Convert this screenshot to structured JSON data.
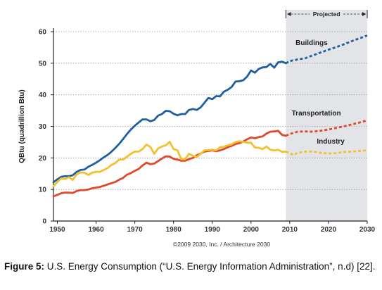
{
  "chart_data": {
    "type": "line",
    "ylabel": "QBtu (quadrillion Btu)",
    "ylim": [
      0,
      60
    ],
    "xlim": [
      1949,
      2030
    ],
    "yticks": [
      0,
      10,
      20,
      30,
      40,
      50,
      60
    ],
    "xticks": [
      1950,
      1960,
      1970,
      1980,
      1990,
      2000,
      2010,
      2020,
      2030
    ],
    "grid": true,
    "projection_start": 2009,
    "projection_label": "Projected",
    "credit": "©2009 2030, Inc. / Architecture 2030",
    "series": [
      {
        "name": "Buildings",
        "color": "#1f5fa0",
        "historical": [
          [
            1949,
            12.3
          ],
          [
            1950,
            13.2
          ],
          [
            1951,
            14
          ],
          [
            1952,
            14.2
          ],
          [
            1953,
            14.2
          ],
          [
            1954,
            14.5
          ],
          [
            1955,
            15.6
          ],
          [
            1956,
            16.2
          ],
          [
            1957,
            16.3
          ],
          [
            1958,
            17.2
          ],
          [
            1959,
            17.8
          ],
          [
            1960,
            18.5
          ],
          [
            1961,
            19.3
          ],
          [
            1962,
            20.2
          ],
          [
            1963,
            21
          ],
          [
            1964,
            22
          ],
          [
            1965,
            23.2
          ],
          [
            1966,
            24.5
          ],
          [
            1967,
            26
          ],
          [
            1968,
            27.6
          ],
          [
            1969,
            29
          ],
          [
            1970,
            30.2
          ],
          [
            1971,
            31.2
          ],
          [
            1972,
            32.2
          ],
          [
            1973,
            32.2
          ],
          [
            1974,
            31.6
          ],
          [
            1975,
            32
          ],
          [
            1976,
            33.4
          ],
          [
            1977,
            33.9
          ],
          [
            1978,
            34.9
          ],
          [
            1979,
            34.8
          ],
          [
            1980,
            34
          ],
          [
            1981,
            33.5
          ],
          [
            1982,
            33.9
          ],
          [
            1983,
            33.9
          ],
          [
            1984,
            35.2
          ],
          [
            1985,
            35.5
          ],
          [
            1986,
            35.2
          ],
          [
            1987,
            36
          ],
          [
            1988,
            37.5
          ],
          [
            1989,
            39
          ],
          [
            1990,
            38.6
          ],
          [
            1991,
            39.6
          ],
          [
            1992,
            39.5
          ],
          [
            1993,
            41
          ],
          [
            1994,
            41.6
          ],
          [
            1995,
            42.5
          ],
          [
            1996,
            44.2
          ],
          [
            1997,
            44.3
          ],
          [
            1998,
            44.6
          ],
          [
            1999,
            45.8
          ],
          [
            2000,
            47.7
          ],
          [
            2001,
            47
          ],
          [
            2002,
            48.2
          ],
          [
            2003,
            48.7
          ],
          [
            2004,
            48.8
          ],
          [
            2005,
            49.8
          ],
          [
            2006,
            48.6
          ],
          [
            2007,
            50.3
          ],
          [
            2008,
            50.5
          ],
          [
            2009,
            50
          ]
        ],
        "projected": [
          [
            2009,
            50
          ],
          [
            2010,
            50.7
          ],
          [
            2012,
            51.2
          ],
          [
            2014,
            51.6
          ],
          [
            2016,
            52.5
          ],
          [
            2018,
            53.4
          ],
          [
            2020,
            54.3
          ],
          [
            2022,
            55.1
          ],
          [
            2024,
            56
          ],
          [
            2026,
            57
          ],
          [
            2028,
            57.9
          ],
          [
            2030,
            58.8
          ]
        ]
      },
      {
        "name": "Transportation",
        "color": "#e2472b",
        "historical": [
          [
            1949,
            7.8
          ],
          [
            1950,
            8.3
          ],
          [
            1951,
            8.8
          ],
          [
            1952,
            9
          ],
          [
            1953,
            9
          ],
          [
            1954,
            8.9
          ],
          [
            1955,
            9.5
          ],
          [
            1956,
            9.8
          ],
          [
            1957,
            9.8
          ],
          [
            1958,
            10
          ],
          [
            1959,
            10.4
          ],
          [
            1960,
            10.6
          ],
          [
            1961,
            10.8
          ],
          [
            1962,
            11.2
          ],
          [
            1963,
            11.6
          ],
          [
            1964,
            12
          ],
          [
            1965,
            12.4
          ],
          [
            1966,
            13.1
          ],
          [
            1967,
            13.7
          ],
          [
            1968,
            14.7
          ],
          [
            1969,
            15.2
          ],
          [
            1970,
            15.9
          ],
          [
            1971,
            16.5
          ],
          [
            1972,
            17.6
          ],
          [
            1973,
            18.5
          ],
          [
            1974,
            18
          ],
          [
            1975,
            18.2
          ],
          [
            1976,
            19
          ],
          [
            1977,
            19.8
          ],
          [
            1978,
            20.5
          ],
          [
            1979,
            20.4
          ],
          [
            1980,
            19.7
          ],
          [
            1981,
            19.5
          ],
          [
            1982,
            19.1
          ],
          [
            1983,
            19.1
          ],
          [
            1984,
            19.6
          ],
          [
            1985,
            20
          ],
          [
            1986,
            20.8
          ],
          [
            1987,
            21.4
          ],
          [
            1988,
            22
          ],
          [
            1989,
            22.2
          ],
          [
            1990,
            22.4
          ],
          [
            1991,
            22.1
          ],
          [
            1992,
            22.4
          ],
          [
            1993,
            22.8
          ],
          [
            1994,
            23.4
          ],
          [
            1995,
            23.8
          ],
          [
            1996,
            24.4
          ],
          [
            1997,
            24.7
          ],
          [
            1998,
            25.2
          ],
          [
            1999,
            25.9
          ],
          [
            2000,
            26.5
          ],
          [
            2001,
            26.2
          ],
          [
            2002,
            26.6
          ],
          [
            2003,
            26.8
          ],
          [
            2004,
            27.7
          ],
          [
            2005,
            28.3
          ],
          [
            2006,
            28.4
          ],
          [
            2007,
            28.6
          ],
          [
            2008,
            27.3
          ],
          [
            2009,
            27
          ]
        ],
        "projected": [
          [
            2009,
            27
          ],
          [
            2010,
            27.6
          ],
          [
            2012,
            28.3
          ],
          [
            2014,
            28.4
          ],
          [
            2016,
            28.3
          ],
          [
            2018,
            28.6
          ],
          [
            2020,
            29
          ],
          [
            2022,
            29.5
          ],
          [
            2024,
            30
          ],
          [
            2026,
            30.6
          ],
          [
            2028,
            31.2
          ],
          [
            2030,
            31.9
          ]
        ]
      },
      {
        "name": "Industry",
        "color": "#f2c12e",
        "historical": [
          [
            1949,
            11
          ],
          [
            1950,
            12.4
          ],
          [
            1951,
            13.5
          ],
          [
            1952,
            13.3
          ],
          [
            1953,
            13.9
          ],
          [
            1954,
            13
          ],
          [
            1955,
            14.8
          ],
          [
            1956,
            15.4
          ],
          [
            1957,
            15.3
          ],
          [
            1958,
            14.6
          ],
          [
            1959,
            15.3
          ],
          [
            1960,
            15.6
          ],
          [
            1961,
            15.6
          ],
          [
            1962,
            16.2
          ],
          [
            1963,
            16.8
          ],
          [
            1964,
            17.8
          ],
          [
            1965,
            18.4
          ],
          [
            1966,
            19.5
          ],
          [
            1967,
            19.5
          ],
          [
            1968,
            20.4
          ],
          [
            1969,
            21.3
          ],
          [
            1970,
            22
          ],
          [
            1971,
            22
          ],
          [
            1972,
            22.8
          ],
          [
            1973,
            24.2
          ],
          [
            1974,
            23.5
          ],
          [
            1975,
            21.3
          ],
          [
            1976,
            23
          ],
          [
            1977,
            23.6
          ],
          [
            1978,
            24
          ],
          [
            1979,
            25.1
          ],
          [
            1980,
            22.8
          ],
          [
            1981,
            22.4
          ],
          [
            1982,
            19.6
          ],
          [
            1983,
            19.6
          ],
          [
            1984,
            21.3
          ],
          [
            1985,
            20.7
          ],
          [
            1986,
            20.3
          ],
          [
            1987,
            21.3
          ],
          [
            1988,
            22.4
          ],
          [
            1989,
            22.5
          ],
          [
            1990,
            22.6
          ],
          [
            1991,
            22.4
          ],
          [
            1992,
            23.4
          ],
          [
            1993,
            23.5
          ],
          [
            1994,
            24
          ],
          [
            1995,
            24.3
          ],
          [
            1996,
            25
          ],
          [
            1997,
            25.3
          ],
          [
            1998,
            25.1
          ],
          [
            1999,
            24.8
          ],
          [
            2000,
            24.8
          ],
          [
            2001,
            23.3
          ],
          [
            2002,
            23.2
          ],
          [
            2003,
            22.8
          ],
          [
            2004,
            23.6
          ],
          [
            2005,
            22.6
          ],
          [
            2006,
            22.4
          ],
          [
            2007,
            22.6
          ],
          [
            2008,
            21.9
          ],
          [
            2009,
            22
          ]
        ],
        "projected": [
          [
            2009,
            22
          ],
          [
            2010,
            21.5
          ],
          [
            2011,
            20.9
          ],
          [
            2012,
            21.6
          ],
          [
            2014,
            22
          ],
          [
            2016,
            22
          ],
          [
            2018,
            21.6
          ],
          [
            2020,
            21.4
          ],
          [
            2022,
            21.5
          ],
          [
            2024,
            21.9
          ],
          [
            2026,
            22
          ],
          [
            2028,
            22.2
          ],
          [
            2030,
            22.4
          ]
        ]
      }
    ]
  },
  "caption": {
    "label": "Figure 5:",
    "text": " U.S. Energy Consumption (“U.S. Energy Information Administration”, n.d) [22]."
  }
}
